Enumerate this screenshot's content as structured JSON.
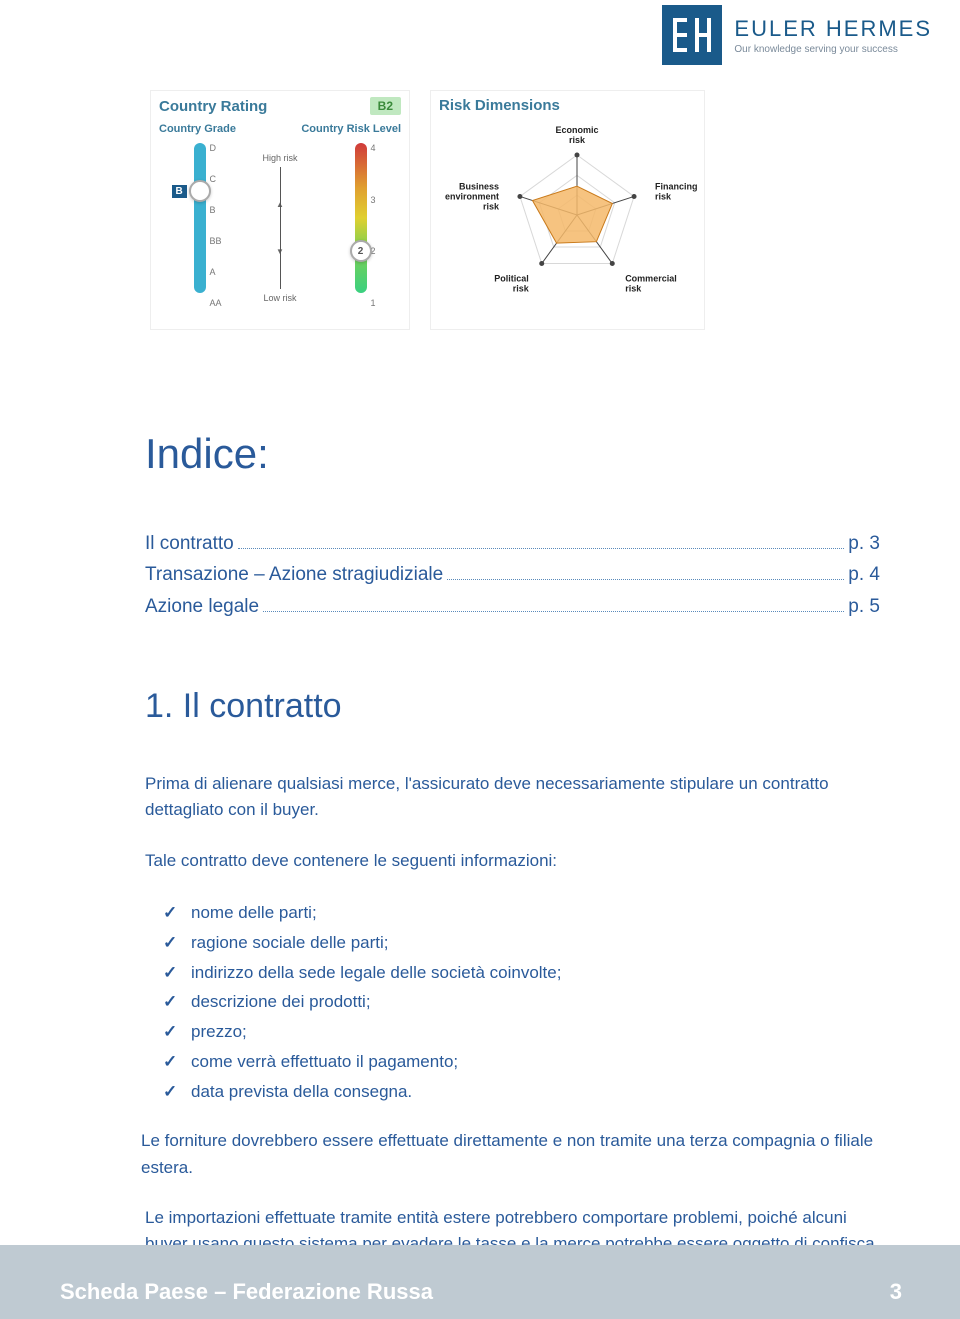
{
  "logo": {
    "main": "EULER HERMES",
    "tagline": "Our knowledge serving your success"
  },
  "rating": {
    "title": "Country Rating",
    "badge": "B2",
    "grade_label": "Country Grade",
    "risk_label": "Country Risk Level",
    "high": "High risk",
    "low": "Low risk",
    "grades": [
      "D",
      "C",
      "B",
      "BB",
      "A",
      "AA"
    ],
    "risk_levels": [
      "4",
      "3",
      "2",
      "1"
    ],
    "grade_marker_value": "B",
    "grade_marker_pos_pct": 32,
    "risk_marker_value": "2",
    "risk_marker_pos_pct": 72,
    "grade_scale_color": "#3ab0d0",
    "risk_gradient": [
      "#d03a3a",
      "#e0a030",
      "#e0d030",
      "#80d050",
      "#3ad080"
    ]
  },
  "dimensions": {
    "title": "Risk Dimensions",
    "axes": [
      "Economic risk",
      "Financing risk",
      "Commercial risk",
      "Political risk",
      "Business environment risk"
    ],
    "values_pct": [
      48,
      62,
      55,
      58,
      78
    ],
    "fill_color": "#f5b96a",
    "line_color": "#444444",
    "grid_color": "#d8d8d8"
  },
  "indice_heading": "Indice:",
  "toc": [
    {
      "label": "Il contratto",
      "page": "p. 3"
    },
    {
      "label": "Transazione – Azione stragiudiziale",
      "page": "p. 4"
    },
    {
      "label": "Azione legale",
      "page": "p. 5"
    }
  ],
  "section1_heading": "1. Il contratto",
  "para1": "Prima di alienare qualsiasi merce, l'assicurato deve necessariamente stipulare un contratto dettagliato con il buyer.",
  "para2": "Tale contratto deve contenere le seguenti informazioni:",
  "bullets": [
    "nome delle parti;",
    "ragione sociale delle parti;",
    "indirizzo della sede legale delle società coinvolte;",
    "descrizione dei prodotti;",
    "prezzo;",
    "come verrà effettuato il pagamento;",
    "data prevista della consegna."
  ],
  "para3": "Le forniture dovrebbero essere effettuate direttamente e non tramite una terza compagnia o filiale estera.",
  "para4": "Le importazioni effettuate tramite entità estere potrebbero comportare problemi, poiché alcuni buyer usano questo sistema per evadere le tasse e la merce potrebbe essere oggetto di confisca.",
  "footer": {
    "title": "Scheda Paese – Federazione Russa",
    "page": "3"
  },
  "colors": {
    "brand": "#1a5a8a",
    "text": "#2a5a9a",
    "footer_bg": "#bfcad2"
  }
}
